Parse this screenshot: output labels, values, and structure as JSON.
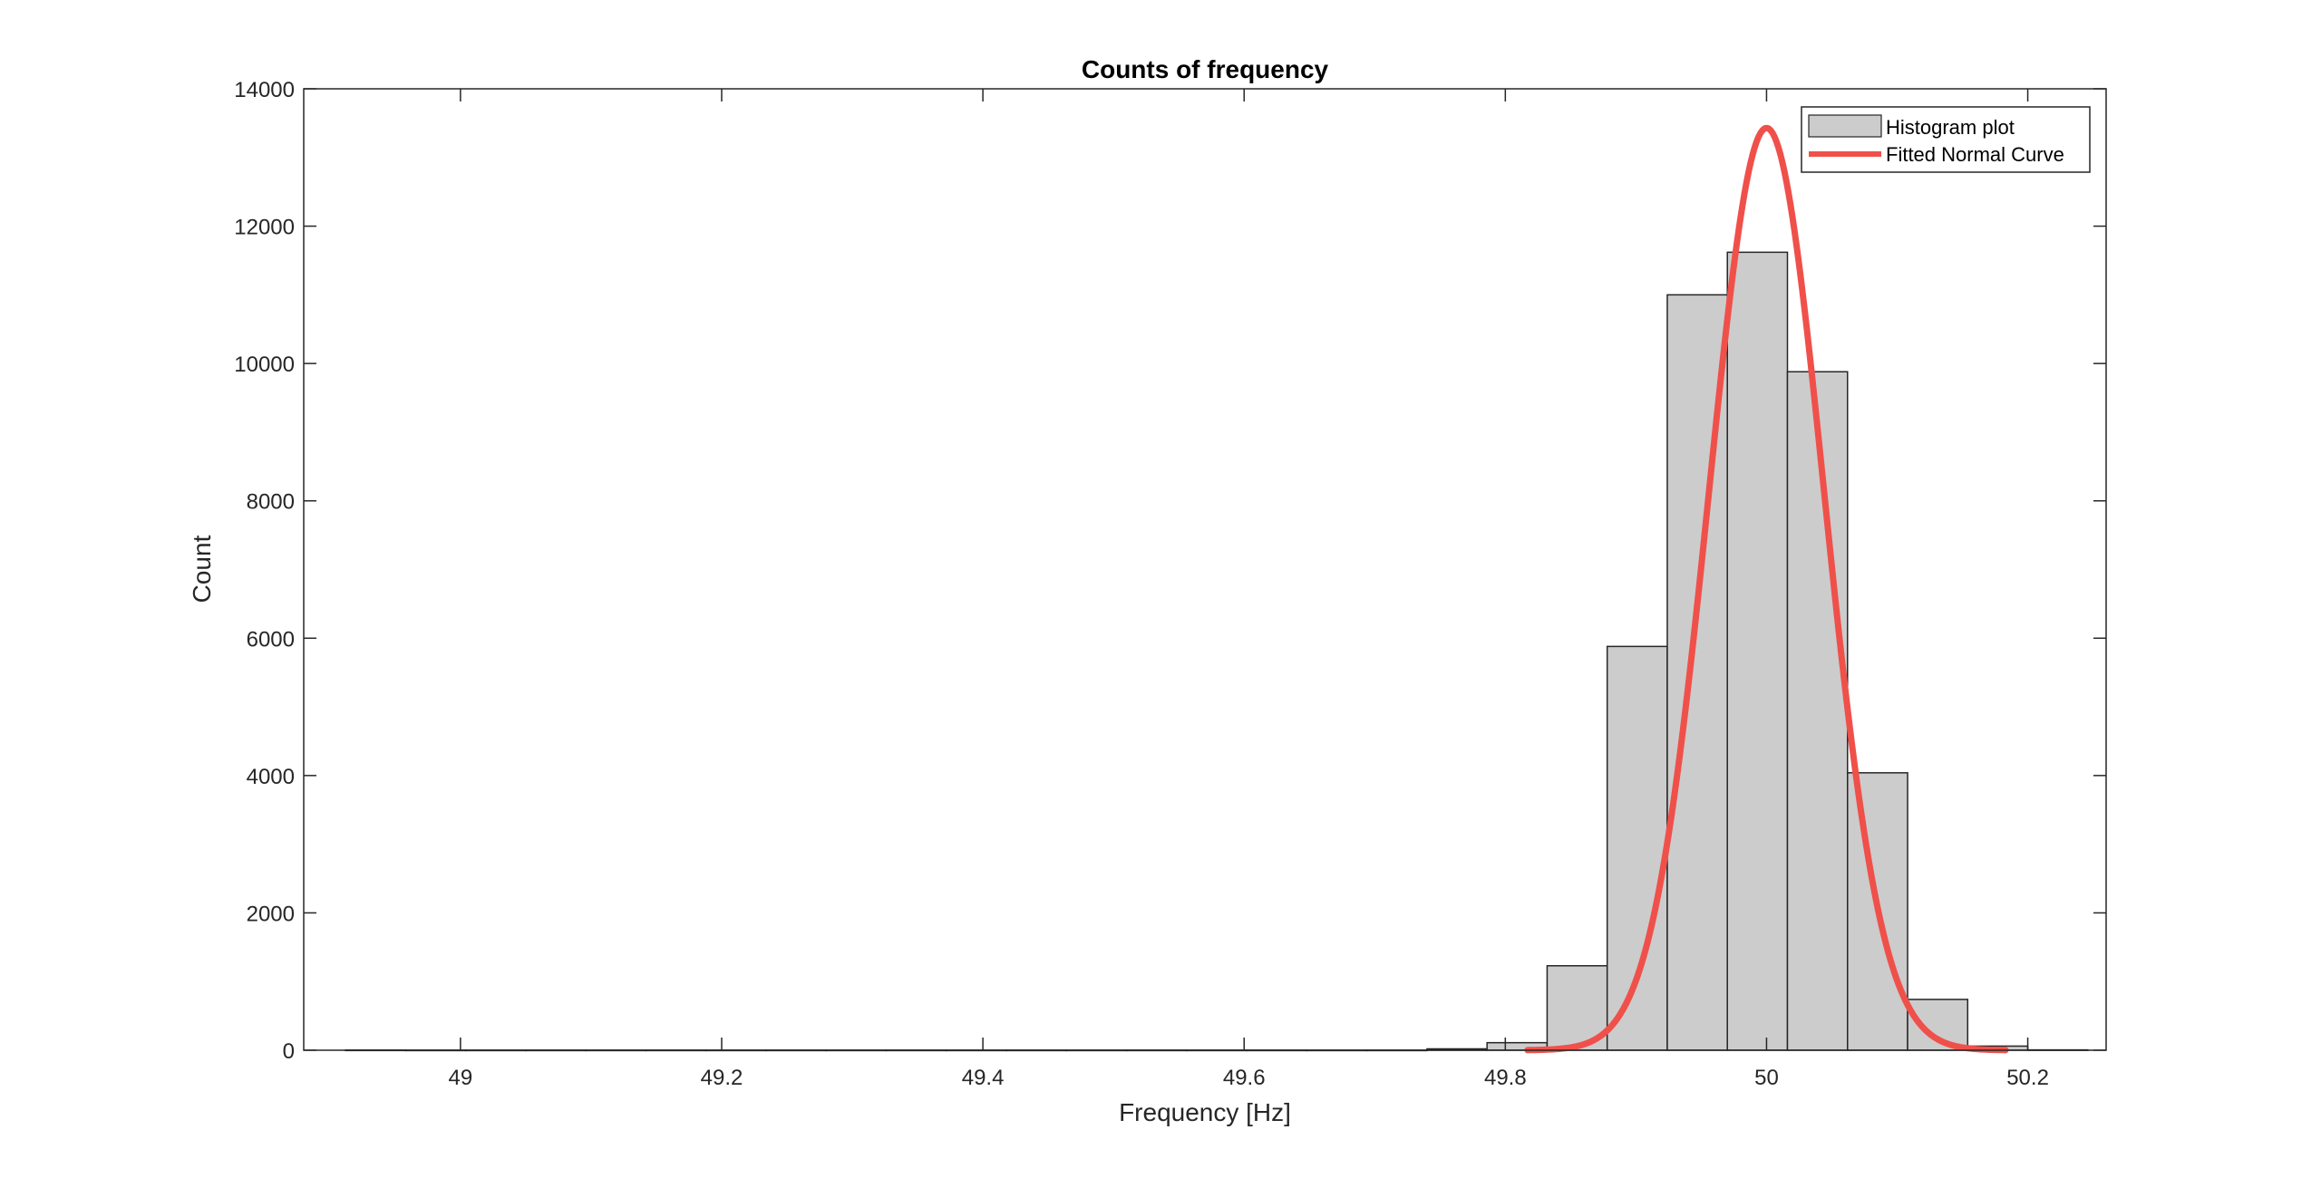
{
  "chart_data": {
    "type": "bar",
    "title": "Counts of frequency",
    "xlabel": "Frequency [Hz]",
    "ylabel": "Count",
    "xlim": [
      48.88,
      50.26
    ],
    "ylim": [
      0,
      14000
    ],
    "xticks": [
      49,
      49.2,
      49.4,
      49.6,
      49.8,
      50,
      50.2
    ],
    "xtick_labels": [
      "49",
      "49.2",
      "49.4",
      "49.6",
      "49.8",
      "50",
      "50.2"
    ],
    "yticks": [
      0,
      2000,
      4000,
      6000,
      8000,
      10000,
      12000,
      14000
    ],
    "ytick_labels": [
      "0",
      "2000",
      "4000",
      "6000",
      "8000",
      "10000",
      "12000",
      "14000"
    ],
    "grid": false,
    "legend_position": "top-right",
    "series": [
      {
        "name": "Histogram plot",
        "kind": "histogram",
        "color": "#cccccc",
        "edge_color": "#262626",
        "bin_width": 0.046,
        "bin_edges": [
          48.912,
          48.958,
          49.004,
          49.05,
          49.096,
          49.142,
          49.188,
          49.234,
          49.28,
          49.326,
          49.372,
          49.418,
          49.464,
          49.51,
          49.556,
          49.602,
          49.648,
          49.694,
          49.74,
          49.786,
          49.832,
          49.878,
          49.924,
          49.97,
          50.016,
          50.062,
          50.108,
          50.154,
          50.2,
          50.246
        ],
        "values": [
          2,
          1,
          1,
          1,
          1,
          1,
          1,
          1,
          1,
          1,
          1,
          1,
          1,
          1,
          1,
          1,
          1,
          1,
          20,
          110,
          1230,
          5880,
          11000,
          11620,
          9880,
          4040,
          740,
          60,
          5
        ]
      },
      {
        "name": "Fitted Normal Curve",
        "kind": "line",
        "color": "#f0504a",
        "mean": 50.0,
        "std": 0.044,
        "peak": 13430,
        "x_range": [
          49.817,
          50.183
        ]
      }
    ]
  }
}
